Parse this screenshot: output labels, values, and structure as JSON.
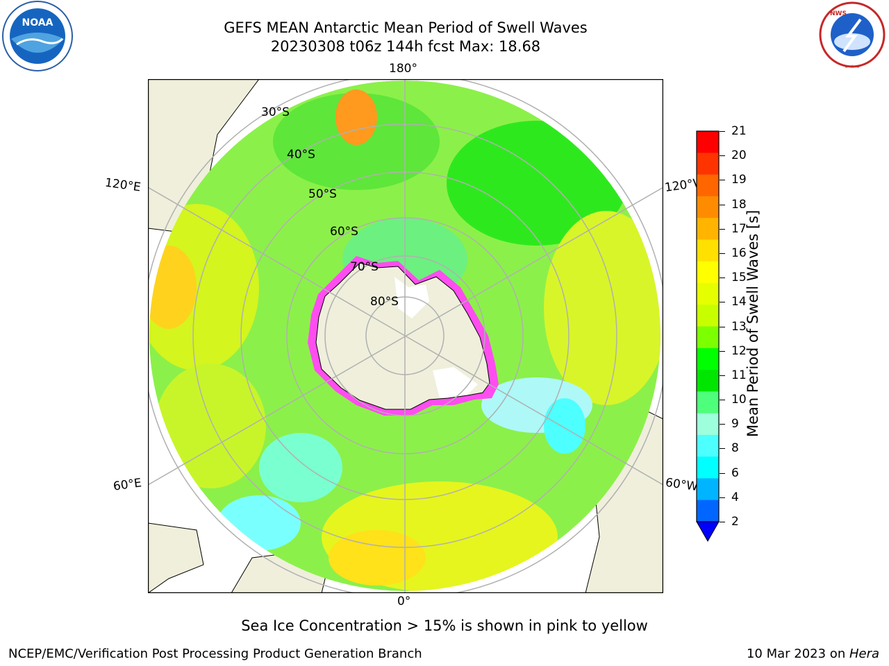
{
  "title": {
    "line1": "GEFS MEAN Antarctic Mean Period of Swell Waves",
    "line2": "20230308 t06z 144h fcst   Max: 18.68"
  },
  "map": {
    "projection": "south-polar-stereographic",
    "lon_labels": {
      "top": "180°",
      "bottom": "0°",
      "left_upper": "120°E",
      "left_lower": "60°E",
      "right_upper": "120°W",
      "right_lower": "60°W"
    },
    "lat_labels": [
      "30°S",
      "40°S",
      "50°S",
      "60°S",
      "70°S",
      "80°S"
    ],
    "land_color": "#efefdc",
    "sea_ice_note": "Sea Ice Concentration > 15% is shown in pink to yellow"
  },
  "colorbar": {
    "label": "Mean Period of Swell Waves [s]",
    "ticks": [
      "21",
      "20",
      "19",
      "18",
      "17",
      "16",
      "15",
      "14",
      "13",
      "12",
      "11",
      "10",
      "9",
      "8",
      "6",
      "4",
      "2"
    ],
    "colors": [
      "#ff0000",
      "#ff3300",
      "#ff6600",
      "#ff8c00",
      "#ffb400",
      "#ffe000",
      "#ffff00",
      "#e6ff00",
      "#c8ff00",
      "#7cff00",
      "#00ff00",
      "#00e600",
      "#4dff7a",
      "#9dffdc",
      "#4dffff",
      "#00ffff",
      "#00b4ff",
      "#0066ff",
      "#0000ff"
    ]
  },
  "logos": {
    "left": "NOAA",
    "right": "NATIONAL WEATHER SERVICE"
  },
  "footer": {
    "left": "NCEP/EMC/Verification Post Processing Product Generation Branch",
    "right_date": "10 Mar 2023 on ",
    "right_host": "Hera"
  }
}
